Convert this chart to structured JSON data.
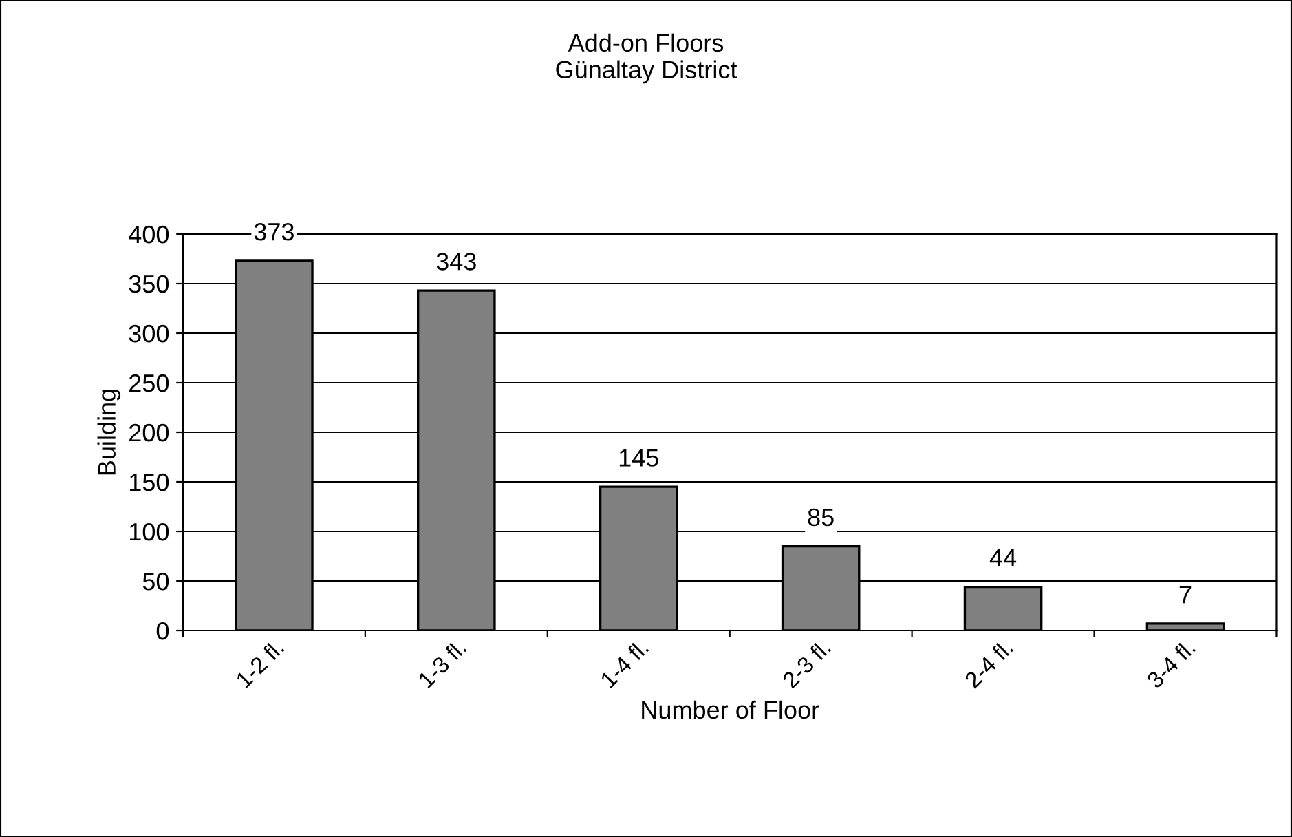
{
  "chart_data": {
    "type": "bar",
    "title": "Add-on Floors\nGünaltay District",
    "xlabel": "Number of Floor",
    "ylabel": "Building",
    "categories": [
      "1-2 fl.",
      "1-3 fl.",
      "1-4 fl.",
      "2-3 fl.",
      "2-4 fl.",
      "3-4 fl."
    ],
    "values": [
      373,
      343,
      145,
      85,
      44,
      7
    ],
    "color": "#808080",
    "ylim": [
      0,
      400
    ],
    "yticks": [
      0,
      50,
      100,
      150,
      200,
      250,
      300,
      350,
      400
    ],
    "grid": "y",
    "data_labels": true
  }
}
